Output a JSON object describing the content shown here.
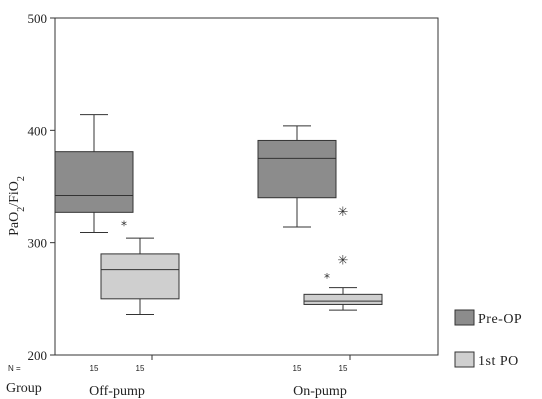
{
  "chart_data": {
    "type": "boxplot",
    "ylabel_parts": [
      "PaO",
      "2",
      "/FiO",
      "2"
    ],
    "ylim": [
      200,
      500
    ],
    "yticks": [
      200,
      300,
      400,
      500
    ],
    "n_label": "N =",
    "group_label": "Group",
    "categories": [
      "Off-pump",
      "On-pump"
    ],
    "legend_position": "right",
    "series": [
      {
        "name": "Pre-OP",
        "color": "#8c8c8c",
        "boxes": [
          {
            "category": "Off-pump",
            "n": "15",
            "whisker_low": 309,
            "q1": 327,
            "median": 342,
            "q3": 381,
            "whisker_high": 414,
            "outliers": []
          },
          {
            "category": "On-pump",
            "n": "15",
            "whisker_low": 314,
            "q1": 340,
            "median": 375,
            "q3": 391,
            "whisker_high": 404,
            "outliers": []
          }
        ]
      },
      {
        "name": "1st PO",
        "color": "#cfcfcf",
        "boxes": [
          {
            "category": "Off-pump",
            "n": "15",
            "whisker_low": 236,
            "q1": 250,
            "median": 276,
            "q3": 290,
            "whisker_high": 304,
            "outliers": [
              {
                "value": 318,
                "symbol": "*"
              }
            ]
          },
          {
            "category": "On-pump",
            "n": "15",
            "whisker_low": 240,
            "q1": 245,
            "median": 248,
            "q3": 254,
            "whisker_high": 260,
            "outliers": [
              {
                "value": 271,
                "symbol": "*"
              },
              {
                "value": 285,
                "symbol": "✳"
              },
              {
                "value": 328,
                "symbol": "✳"
              }
            ]
          }
        ]
      }
    ]
  }
}
